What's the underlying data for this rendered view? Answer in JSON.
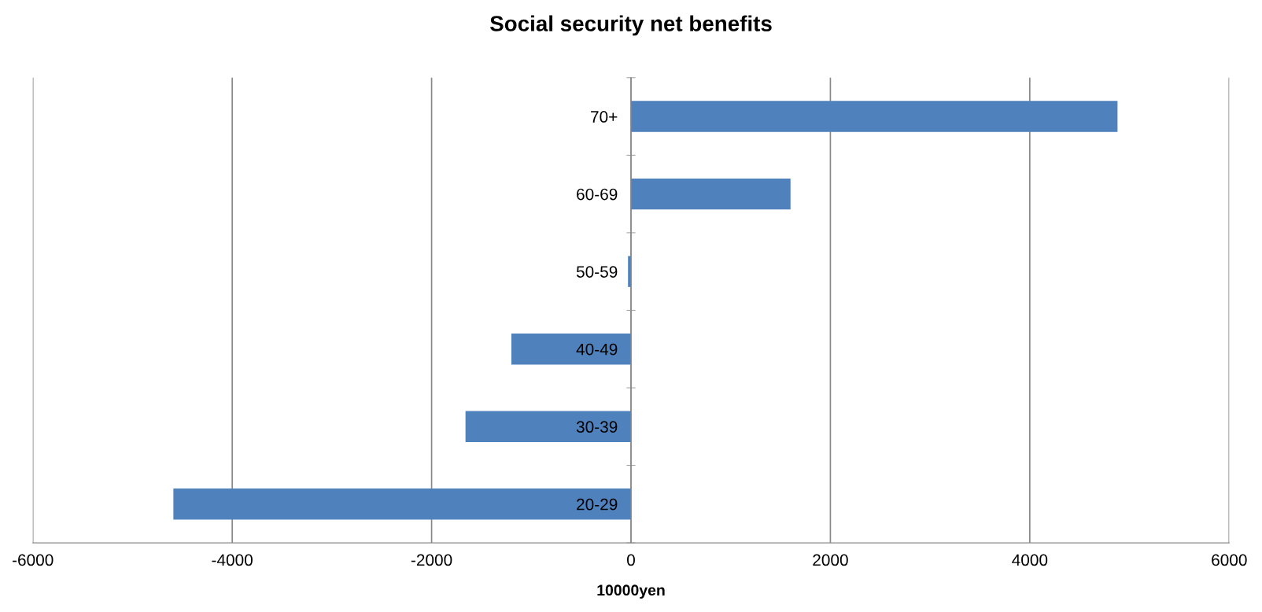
{
  "chart_data": {
    "type": "bar",
    "orientation": "horizontal",
    "title": "Social security net benefits",
    "xlabel": "10000yen",
    "categories": [
      "70+",
      "60-69",
      "50-59",
      "40-49",
      "30-39",
      "20-29"
    ],
    "values": [
      4880,
      1600,
      -30,
      -1200,
      -1660,
      -4590
    ],
    "color": "#4f81bd",
    "xlim": [
      -6000,
      6000
    ],
    "xticks": [
      -6000,
      -4000,
      -2000,
      0,
      2000,
      4000,
      6000
    ],
    "grid": "x",
    "legend": false
  }
}
